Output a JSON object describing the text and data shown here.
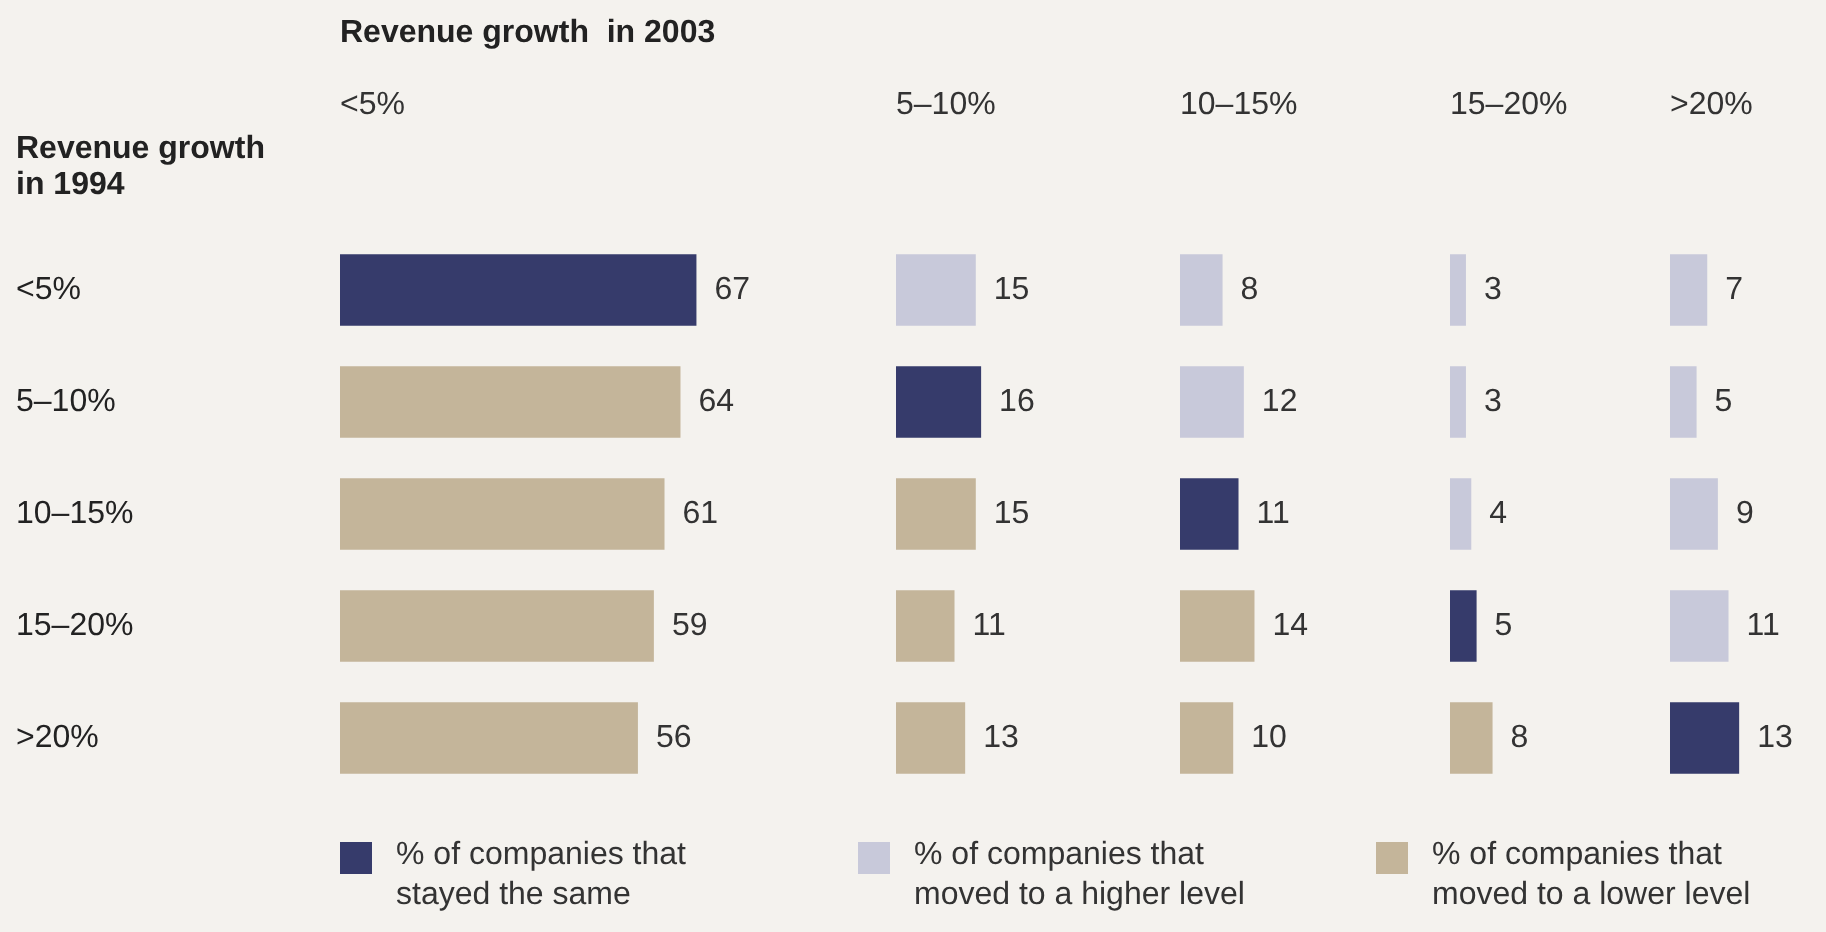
{
  "chart_data": [
    {
      "type": "bar",
      "orientation": "horizontal",
      "stacked": true,
      "title": "Revenue growth  in 2003",
      "subtitle": "<5%",
      "ylabel": "Revenue growth in 1994",
      "categories": [
        "<5%",
        "5–10%",
        "10–15%",
        "15–20%",
        ">20%"
      ],
      "tick_labels": "y",
      "data_labels": true,
      "legend": "bottom",
      "series": [
        {
          "name": "% of companies that stayed the same",
          "color": "#363b6b",
          "values": [
            67,
            null,
            null,
            null,
            null
          ]
        },
        {
          "name": "% of companies that moved to a higher level",
          "color": "#c8c9da",
          "values": [
            null,
            null,
            null,
            null,
            null
          ]
        },
        {
          "name": "% of companies that moved to a lower level",
          "color": "#c4b59a",
          "values": [
            null,
            64,
            61,
            59,
            56
          ]
        }
      ]
    },
    {
      "type": "bar",
      "orientation": "horizontal",
      "stacked": true,
      "subtitle": "5–10%",
      "tick_labels": false,
      "data_labels": true,
      "series": [
        {
          "color": "#363b6b",
          "values": [
            null,
            16,
            null,
            null,
            null
          ]
        },
        {
          "color": "#c8c9da",
          "values": [
            15,
            null,
            null,
            null,
            null
          ]
        },
        {
          "color": "#c4b59a",
          "values": [
            null,
            null,
            15,
            11,
            13
          ]
        }
      ]
    },
    {
      "type": "bar",
      "orientation": "horizontal",
      "stacked": true,
      "subtitle": "10–15%",
      "tick_labels": false,
      "data_labels": true,
      "series": [
        {
          "color": "#363b6b",
          "values": [
            null,
            null,
            11,
            null,
            null
          ]
        },
        {
          "color": "#c8c9da",
          "values": [
            8,
            12,
            null,
            null,
            null
          ]
        },
        {
          "color": "#c4b59a",
          "values": [
            null,
            null,
            null,
            14,
            10
          ]
        }
      ]
    },
    {
      "type": "bar",
      "orientation": "horizontal",
      "stacked": true,
      "subtitle": "15–20%",
      "tick_labels": false,
      "data_labels": true,
      "series": [
        {
          "color": "#363b6b",
          "values": [
            null,
            null,
            null,
            5,
            null
          ]
        },
        {
          "color": "#c8c9da",
          "values": [
            3,
            3,
            4,
            null,
            null
          ]
        },
        {
          "color": "#c4b59a",
          "values": [
            null,
            null,
            null,
            null,
            8
          ]
        }
      ]
    },
    {
      "type": "bar",
      "orientation": "horizontal",
      "stacked": true,
      "subtitle": ">20%",
      "tick_labels": false,
      "data_labels": true,
      "series": [
        {
          "color": "#363b6b",
          "values": [
            null,
            null,
            null,
            null,
            13
          ]
        },
        {
          "color": "#c8c9da",
          "values": [
            7,
            5,
            9,
            11,
            null
          ]
        },
        {
          "color": "#c4b59a",
          "values": [
            null,
            null,
            null,
            null,
            null
          ]
        }
      ]
    }
  ]
}
